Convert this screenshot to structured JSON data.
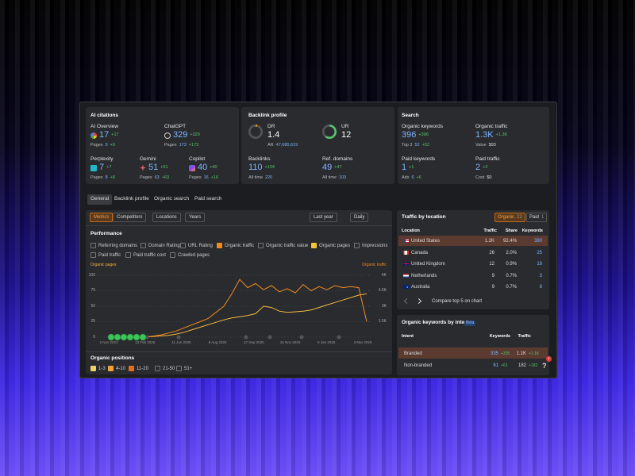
{
  "ai_citations": {
    "title": "AI citations",
    "metrics": [
      {
        "label": "AI Overview",
        "value": "17",
        "delta": "+17",
        "sub_label": "Pages",
        "sub_value": "9",
        "sub_delta": "+9"
      },
      {
        "label": "ChatGPT",
        "value": "329",
        "delta": "+329",
        "sub_label": "Pages",
        "sub_value": "173",
        "sub_delta": "+173"
      },
      {
        "label": "Perplexity",
        "value": "7",
        "delta": "+7",
        "sub_label": "Pages",
        "sub_value": "8",
        "sub_delta": "+8"
      },
      {
        "label": "Gemini",
        "value": "51",
        "delta": "+51",
        "sub_label": "Pages",
        "sub_value": "63",
        "sub_delta": "+63"
      },
      {
        "label": "Copilot",
        "value": "40",
        "delta": "+40",
        "sub_label": "Pages",
        "sub_value": "16",
        "sub_delta": "+16"
      }
    ]
  },
  "backlink_profile": {
    "title": "Backlink profile",
    "metrics": [
      {
        "label": "DR",
        "value": "1.4",
        "sub_label": "AR",
        "sub_value": "47,680,619"
      },
      {
        "label": "UR",
        "value": "12"
      },
      {
        "label": "Backlinks",
        "value": "110",
        "delta": "+104",
        "sub_label": "All time",
        "sub_value": "220"
      },
      {
        "label": "Ref. domains",
        "value": "49",
        "delta": "+47",
        "sub_label": "All time",
        "sub_value": "103"
      }
    ]
  },
  "search": {
    "title": "Search",
    "metrics": [
      {
        "label": "Organic keywords",
        "value": "396",
        "delta": "+396",
        "sub_label": "Top 3",
        "sub_value": "52",
        "sub_delta": "+52"
      },
      {
        "label": "Organic traffic",
        "value": "1.3K",
        "delta": "+1.3K",
        "sub_label": "Value",
        "sub_value": "$93"
      },
      {
        "label": "Paid keywords",
        "value": "1",
        "delta": "+1",
        "sub_label": "Ads",
        "sub_value": "6",
        "sub_delta": "+6"
      },
      {
        "label": "Paid traffic",
        "value": "2",
        "delta": "+2",
        "sub_label": "Cost",
        "sub_value": "$0"
      }
    ]
  },
  "tabs": [
    "General",
    "Backlink profile",
    "Organic search",
    "Paid search"
  ],
  "toolbar": {
    "left": [
      "Metrics",
      "Competitors",
      "Locations",
      "Years"
    ],
    "right": [
      "Last year",
      "Daily"
    ]
  },
  "performance": {
    "title": "Performance",
    "options": [
      {
        "label": "Referring domains",
        "checked": false
      },
      {
        "label": "Domain Rating",
        "checked": false
      },
      {
        "label": "URL Rating",
        "checked": false
      },
      {
        "label": "Organic traffic",
        "checked": true,
        "color": "#ef8a1f"
      },
      {
        "label": "Organic traffic value",
        "checked": false
      },
      {
        "label": "Organic pages",
        "checked": true,
        "color": "#f3c23f"
      },
      {
        "label": "Impressions",
        "checked": false
      },
      {
        "label": "Paid traffic",
        "checked": false
      },
      {
        "label": "Paid traffic cost",
        "checked": false
      },
      {
        "label": "Crawled pages",
        "checked": false
      }
    ],
    "chart": {
      "type": "line",
      "ylim": [
        0,
        100
      ],
      "yticks": [
        0,
        25,
        50,
        75,
        100
      ],
      "y2lim": [
        0,
        6000
      ],
      "y2ticks": [
        {
          "value": 1500,
          "label": "1.5K"
        },
        {
          "value": 3000,
          "label": "3K"
        },
        {
          "value": 4500,
          "label": "4.5K"
        },
        {
          "value": 6000,
          "label": "6K"
        }
      ],
      "x_labels": [
        "2 Nov 2024",
        "13 Feb 2025",
        "11 Jun 2025",
        "8 Aug 2025",
        "27 Sep 2025",
        "16 Nov 2025",
        "6 Jan 2026",
        "3 Mar 2026"
      ],
      "grid": true,
      "series": [
        {
          "name": "Organic pages",
          "color": "#f3b83f",
          "values": [
            null,
            null,
            null,
            0,
            0,
            0,
            0,
            1,
            2,
            3,
            5,
            8,
            12,
            16,
            20,
            24,
            28,
            31,
            33,
            35,
            38,
            50,
            48,
            42,
            40,
            41,
            42,
            44,
            48,
            52,
            56,
            60,
            64,
            68,
            70
          ]
        },
        {
          "name": "Organic traffic",
          "color": "#ef8a1f",
          "axis": "y2",
          "values": [
            null,
            null,
            null,
            0,
            0,
            0,
            0,
            100,
            200,
            400,
            600,
            900,
            1200,
            1500,
            1800,
            2400,
            3000,
            4200,
            5600,
            4800,
            5200,
            4600,
            5000,
            4400,
            4700,
            4300,
            5100,
            4500,
            4900,
            4600,
            5000,
            4800,
            4900,
            4800,
            1500
          ]
        }
      ]
    }
  },
  "organic_positions": {
    "title": "Organic positions",
    "options": [
      {
        "label": "1-3",
        "checked": true,
        "color": "#f3d25b"
      },
      {
        "label": "4-10",
        "checked": true,
        "color": "#f3a13a"
      },
      {
        "label": "11-20",
        "checked": true,
        "color": "#e0701e"
      },
      {
        "label": "21-50",
        "checked": false
      },
      {
        "label": "51+",
        "checked": false
      }
    ]
  },
  "traffic_by_location": {
    "title": "Traffic by location",
    "tabs": [
      {
        "label": "Organic",
        "count": "22"
      },
      {
        "label": "Paid",
        "count": "1"
      }
    ],
    "columns": [
      "Location",
      "Traffic",
      "Share",
      "Keywords"
    ],
    "rows": [
      [
        "United States",
        "1.2K",
        "92.4%",
        "380"
      ],
      [
        "Canada",
        "26",
        "2.0%",
        "25"
      ],
      [
        "United Kingdom",
        "12",
        "0.9%",
        "18"
      ],
      [
        "Netherlands",
        "9",
        "0.7%",
        "3"
      ],
      [
        "Australia",
        "9",
        "0.7%",
        "8"
      ]
    ],
    "compare": "Compare top 5 on chart"
  },
  "keywords_by_intent": {
    "title": "Organic keywords by intent",
    "badge": "Beta",
    "columns": [
      "Intent",
      "Keywords",
      "Traffic"
    ],
    "rows": [
      {
        "intent": "Branded",
        "keywords": "335",
        "keywords_delta": "+335",
        "traffic": "1.1K",
        "traffic_delta": "+1.1K"
      },
      {
        "intent": "Non-branded",
        "keywords": "61",
        "keywords_delta": "+61",
        "traffic": "182",
        "traffic_delta": "+182"
      }
    ]
  },
  "help": {
    "label": "?",
    "badge": "1"
  }
}
